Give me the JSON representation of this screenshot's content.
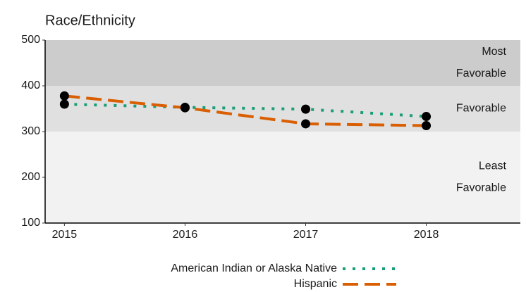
{
  "chart_data": {
    "type": "line",
    "title": "Race/Ethnicity",
    "x": [
      2015,
      2016,
      2017,
      2018
    ],
    "xlim": [
      2014.84,
      2018.78
    ],
    "xticks": [
      2015,
      2016,
      2017,
      2018
    ],
    "ylim": [
      100,
      500
    ],
    "yticks": [
      100,
      200,
      300,
      400,
      500
    ],
    "bands": [
      {
        "from": 100,
        "to": 300,
        "label": [
          "Least",
          "Favorable"
        ],
        "color": "#f2f2f2"
      },
      {
        "from": 300,
        "to": 400,
        "label": [
          "Favorable"
        ],
        "color": "#e0e0e0"
      },
      {
        "from": 400,
        "to": 500,
        "label": [
          "Most",
          "Favorable"
        ],
        "color": "#cccccc"
      }
    ],
    "marker_color": "#000000",
    "series": [
      {
        "name": "American Indian or Alaska Native",
        "color": "#1b9e77",
        "dash": "dotted",
        "values": [
          360,
          353,
          349,
          333
        ]
      },
      {
        "name": "Hispanic",
        "color": "#d95f02",
        "dash": "dashed",
        "values": [
          378,
          352,
          317,
          313
        ]
      }
    ]
  }
}
